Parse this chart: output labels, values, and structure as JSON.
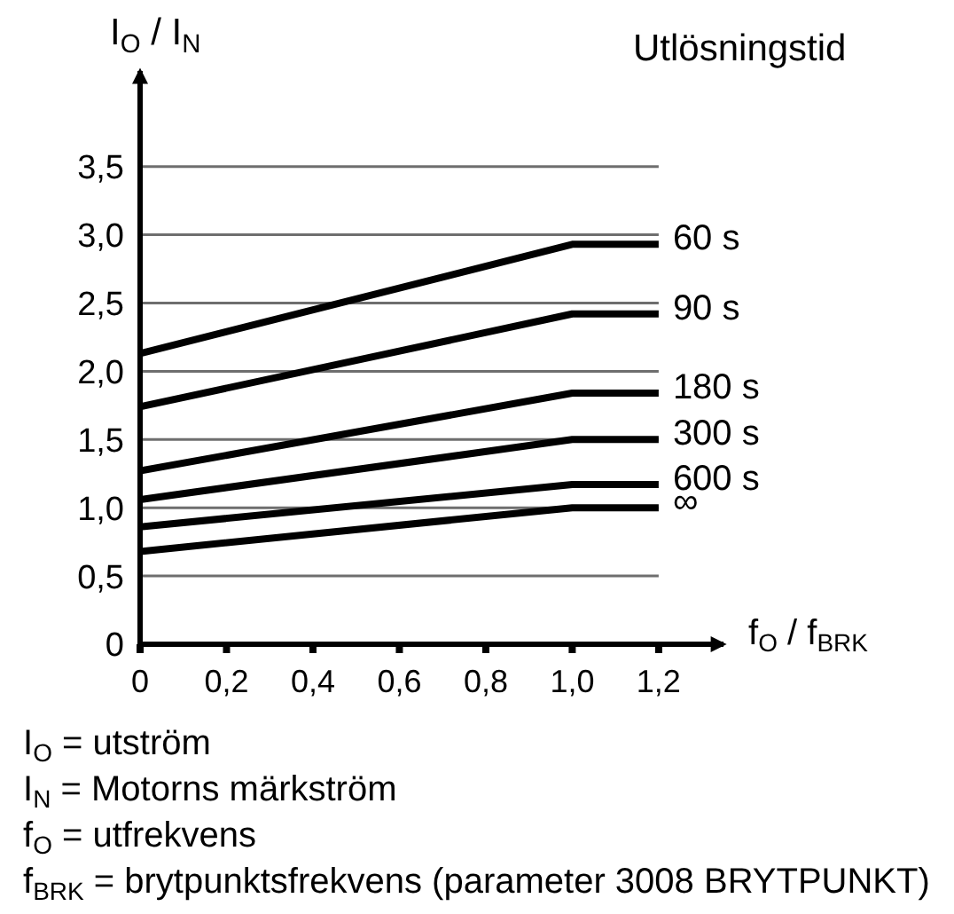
{
  "chart_data": {
    "type": "line",
    "ylabel": "I$_{O}$ / I$_{N}$",
    "xlabel": "f$_{O}$ / f$_{BRK}$",
    "legend_title": "Utlösningstid",
    "x": [
      0,
      1.0,
      1.2
    ],
    "series": [
      {
        "name": "60 s",
        "color": "#000000",
        "values": [
          2.13,
          2.93,
          2.93
        ]
      },
      {
        "name": "90 s",
        "color": "#000000",
        "values": [
          1.74,
          2.42,
          2.42
        ]
      },
      {
        "name": "180 s",
        "color": "#000000",
        "values": [
          1.27,
          1.84,
          1.84
        ]
      },
      {
        "name": "300 s",
        "color": "#000000",
        "values": [
          1.06,
          1.5,
          1.5
        ]
      },
      {
        "name": "600 s",
        "color": "#000000",
        "values": [
          0.86,
          1.17,
          1.17
        ]
      },
      {
        "name": "∞",
        "color": "#000000",
        "values": [
          0.68,
          1.0,
          1.0
        ]
      }
    ],
    "xlim": [
      0,
      1.35
    ],
    "xticks": [
      0,
      {
        "value": 0.2,
        "label": "0,2"
      },
      {
        "value": 0.4,
        "label": "0,4"
      },
      {
        "value": 0.6,
        "label": "0,6"
      },
      {
        "value": 0.8,
        "label": "0,8"
      },
      {
        "value": 1.0,
        "label": "1,0"
      },
      {
        "value": 1.2,
        "label": "1,2"
      }
    ],
    "ylim": [
      0,
      4.2
    ],
    "yticks": [
      0,
      {
        "value": 0.5,
        "label": "0,5"
      },
      {
        "value": 1.0,
        "label": "1,0"
      },
      {
        "value": 1.5,
        "label": "1,5"
      },
      {
        "value": 2.0,
        "label": "2,0"
      },
      {
        "value": 2.5,
        "label": "2,5"
      },
      {
        "value": 3.0,
        "label": "3,0"
      },
      {
        "value": 3.5,
        "label": "3,5"
      }
    ],
    "grid": "y",
    "marker": "none",
    "line_style": "solid",
    "annotations": [
      "I$_{O}$ = utström",
      "I$_{N}$ = Motorns märkström",
      "f$_{O}$ = utfrekvens",
      "f$_{BRK}$ = brytpunktsfrekvens (parameter 3008 BRYTPUNKT)"
    ]
  }
}
